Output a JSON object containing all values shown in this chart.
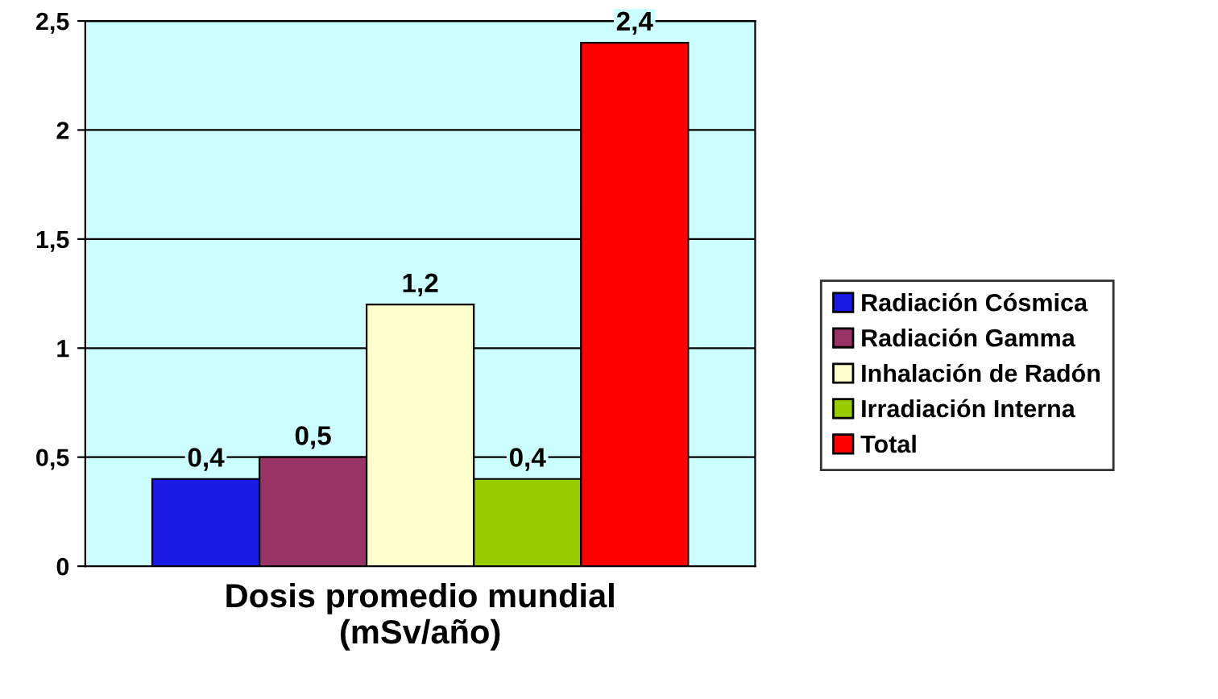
{
  "chart_data": {
    "type": "bar",
    "xlabel": "Dosis promedio mundial\n(mSv/año)",
    "categories": [
      null
    ],
    "series": [
      {
        "name": "Radiación Cósmica",
        "color": "#1a1ae6",
        "values": [
          0.4
        ],
        "value_labels": [
          "0,4"
        ]
      },
      {
        "name": "Radiación Gamma",
        "color": "#993366",
        "values": [
          0.5
        ],
        "value_labels": [
          "0,5"
        ]
      },
      {
        "name": "Inhalación de Radón",
        "color": "#ffffcc",
        "values": [
          1.2
        ],
        "value_labels": [
          "1,2"
        ]
      },
      {
        "name": "Irradiación Interna",
        "color": "#99cc00",
        "values": [
          0.4
        ],
        "value_labels": [
          "0,4"
        ]
      },
      {
        "name": "Total",
        "color": "#ff0000",
        "values": [
          2.4
        ],
        "value_labels": [
          "2,4"
        ]
      }
    ],
    "ylim": [
      0,
      2.5
    ],
    "yticks": [
      0,
      {
        "value": 0.5,
        "label": "0,5"
      },
      1,
      {
        "value": 1.5,
        "label": "1,5"
      },
      2,
      {
        "value": 2.5,
        "label": "2,5"
      }
    ],
    "grid": "y",
    "legend": "right"
  }
}
